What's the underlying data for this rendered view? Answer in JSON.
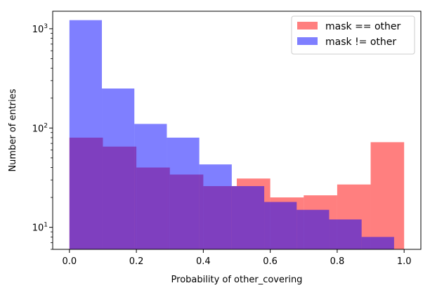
{
  "chart_data": {
    "type": "bar",
    "subtype": "histogram",
    "title": "",
    "xlabel": "Probability of other_covering",
    "ylabel": "Number of entries",
    "xlim": [
      -0.05,
      1.05
    ],
    "ylim": [
      6,
      1500
    ],
    "yscale": "log",
    "xticks": [
      0.0,
      0.2,
      0.4,
      0.6,
      0.8,
      1.0
    ],
    "xtick_labels": [
      "0.0",
      "0.2",
      "0.4",
      "0.6",
      "0.8",
      "1.0"
    ],
    "yticks": [
      10,
      100,
      1000
    ],
    "ytick_labels": [
      {
        "base": "10",
        "exp": "1"
      },
      {
        "base": "10",
        "exp": "2"
      },
      {
        "base": "10",
        "exp": "3"
      }
    ],
    "legend_position": "upper-right",
    "series": [
      {
        "name": "mask == other",
        "color": "#ff0000",
        "opacity": 0.5,
        "bin_edges": [
          0.0,
          0.1,
          0.2,
          0.3,
          0.4,
          0.5,
          0.6,
          0.7,
          0.8,
          0.9,
          1.0
        ],
        "values": [
          80,
          65,
          40,
          34,
          26,
          31,
          20,
          21,
          27,
          72
        ]
      },
      {
        "name": "mask != other",
        "color": "#0000ff",
        "opacity": 0.5,
        "bin_edges": [
          0.0,
          0.097,
          0.194,
          0.291,
          0.388,
          0.485,
          0.582,
          0.679,
          0.776,
          0.873,
          0.97
        ],
        "values": [
          1220,
          250,
          110,
          80,
          43,
          26,
          18,
          15,
          12,
          8
        ]
      }
    ]
  }
}
